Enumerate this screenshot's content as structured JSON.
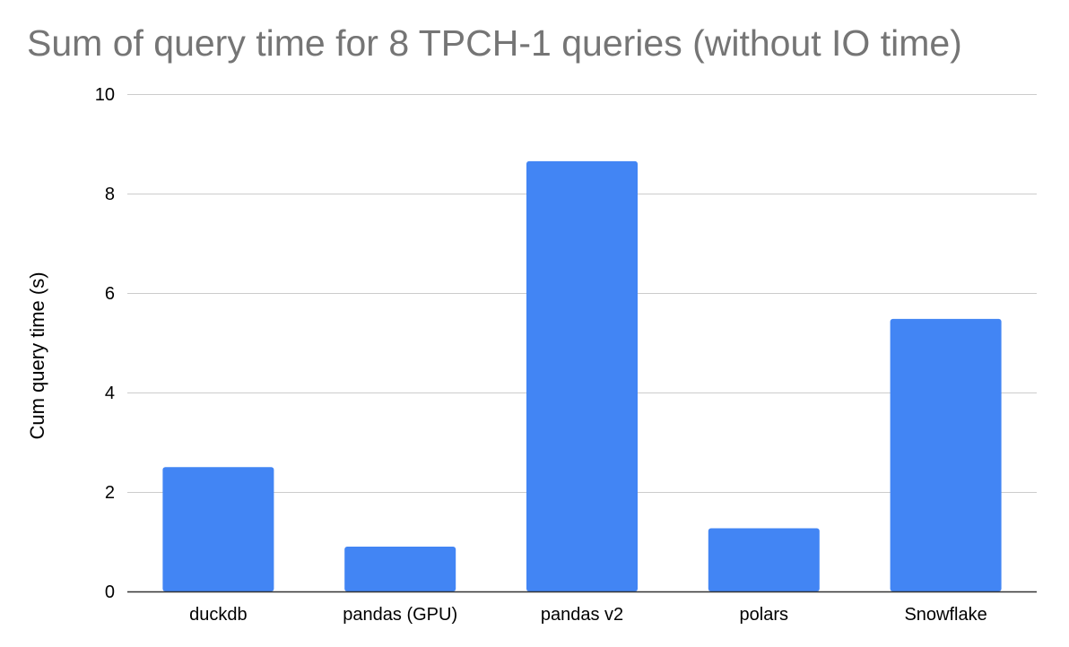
{
  "chart_data": {
    "type": "bar",
    "title": "Sum of query time for 8 TPCH-1 queries (without IO time)",
    "xlabel": "",
    "ylabel": "Cum query time (s)",
    "categories": [
      "duckdb",
      "pandas (GPU)",
      "pandas v2",
      "polars",
      "Snowflake"
    ],
    "values": [
      2.5,
      0.9,
      8.65,
      1.27,
      5.48
    ],
    "ylim": [
      0,
      10
    ],
    "yticks": [
      0,
      2,
      4,
      6,
      8,
      10
    ],
    "grid": true,
    "legend": "none",
    "bar_color": "#4285f4"
  }
}
